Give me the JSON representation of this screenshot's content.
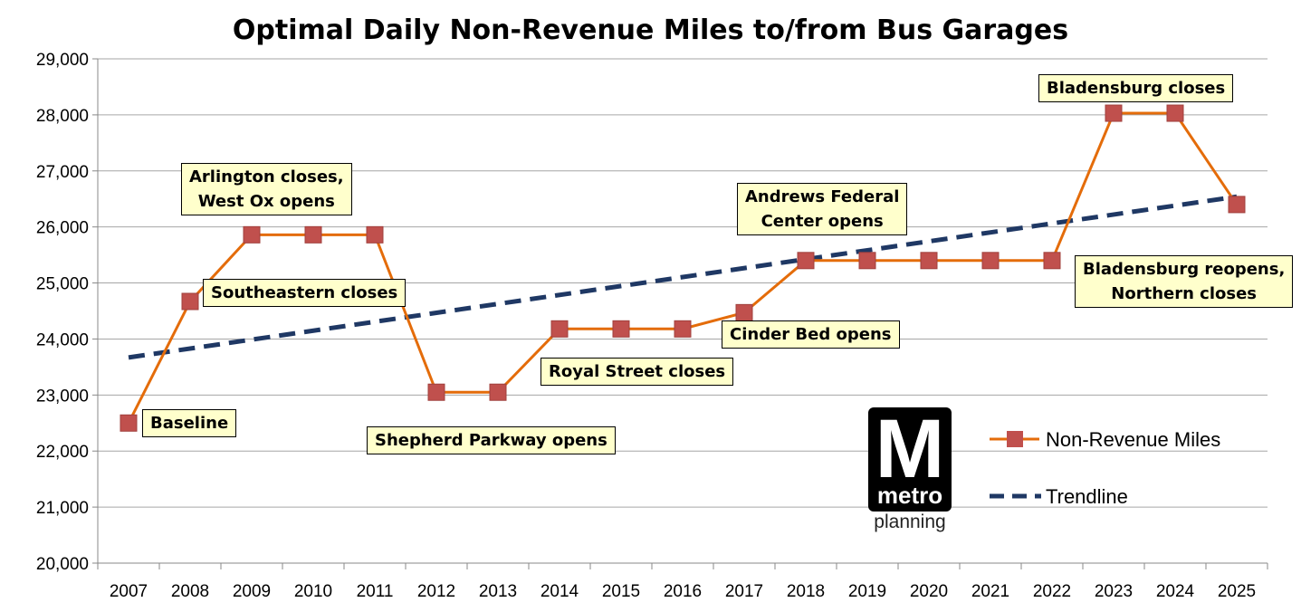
{
  "chart_data": {
    "type": "line",
    "title": "Optimal Daily Non-Revenue Miles to/from Bus Garages",
    "categories": [
      "2007",
      "2008",
      "2009",
      "2010",
      "2011",
      "2012",
      "2013",
      "2014",
      "2015",
      "2016",
      "2017",
      "2018",
      "2019",
      "2020",
      "2021",
      "2022",
      "2023",
      "2024",
      "2025"
    ],
    "ylim": [
      20000,
      29000
    ],
    "yticks": [
      "20,000",
      "21,000",
      "22,000",
      "23,000",
      "24,000",
      "25,000",
      "26,000",
      "27,000",
      "28,000",
      "29,000"
    ],
    "grid": true,
    "legend_position": "bottom-right",
    "series": [
      {
        "name": "Non-Revenue Miles",
        "color": "#e46c0a",
        "marker_color": "#c0504d",
        "values": [
          22500,
          24670,
          25860,
          25860,
          25860,
          23050,
          23050,
          24180,
          24180,
          24180,
          24470,
          25400,
          25400,
          25400,
          25400,
          25400,
          28030,
          28030,
          26400
        ]
      },
      {
        "name": "Trendline",
        "color": "#1f3864",
        "style": "dashed",
        "start": 23670,
        "end": 26540
      }
    ],
    "annotations": [
      "Baseline",
      "Southeastern closes",
      "Arlington closes,\nWest Ox opens",
      "Shepherd Parkway opens",
      "Royal Street closes",
      "Cinder Bed opens",
      "Andrews Federal\nCenter opens",
      "Bladensburg closes",
      "Bladensburg reopens,\nNorthern closes"
    ]
  },
  "logo": {
    "mark": "M",
    "word": "metro",
    "sub": "planning"
  }
}
